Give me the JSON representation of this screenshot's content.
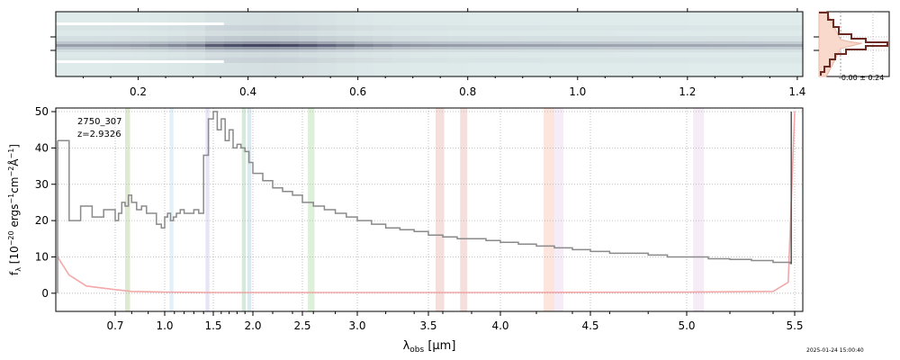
{
  "chart_data": [
    {
      "type": "heatmap",
      "name": "2D spectrum",
      "x_ticks": [
        "0.2",
        "0.4",
        "0.6",
        "0.8",
        "1.0",
        "1.2",
        "1.4"
      ],
      "x_tick_values": [
        0.2,
        0.4,
        0.6,
        0.8,
        1.0,
        1.2,
        1.4
      ],
      "xlim": [
        0.05,
        1.41
      ],
      "colormap": "bone_r (white to dark navy)"
    },
    {
      "type": "histogram",
      "name": "Pixel distribution",
      "annotation": "-0.00 ± 0.24",
      "colors": {
        "fill": "#f9d9cc",
        "edge": "#6b2a22"
      }
    },
    {
      "type": "line",
      "name": "1D spectrum",
      "object_id": "2750_307",
      "redshift": "z=2.9326",
      "xlabel": "λobs [μm]",
      "ylabel": "fλ [10⁻²⁰ ergs⁻¹cm⁻²Å⁻¹]",
      "x_ticks": [
        "0.7",
        "1.0",
        "1.5",
        "2.0",
        "2.5",
        "3.0",
        "3.5",
        "4.0",
        "4.5",
        "5.0",
        "5.5"
      ],
      "x_tick_values": [
        0.7,
        1.0,
        1.5,
        2.0,
        2.5,
        3.0,
        3.5,
        4.0,
        4.5,
        5.0,
        5.5
      ],
      "x_scale": "nonlinear (pixel-based)",
      "y_ticks": [
        "0",
        "10",
        "20",
        "30",
        "40",
        "50"
      ],
      "ylim": [
        -5,
        51
      ],
      "grid": true,
      "series": [
        {
          "role": "flux",
          "color": "#8a8a8a",
          "x": [
            0.6,
            0.62,
            0.64,
            0.66,
            0.68,
            0.7,
            0.72,
            0.74,
            0.76,
            0.78,
            0.8,
            0.83,
            0.86,
            0.89,
            0.92,
            0.95,
            0.98,
            1.0,
            1.03,
            1.06,
            1.09,
            1.12,
            1.16,
            1.2,
            1.25,
            1.3,
            1.35,
            1.4,
            1.45,
            1.5,
            1.55,
            1.6,
            1.65,
            1.7,
            1.75,
            1.8,
            1.85,
            1.9,
            1.95,
            2.0,
            2.1,
            2.2,
            2.3,
            2.4,
            2.5,
            2.6,
            2.7,
            2.8,
            2.9,
            3.0,
            3.1,
            3.2,
            3.3,
            3.4,
            3.5,
            3.6,
            3.7,
            3.8,
            3.9,
            4.0,
            4.1,
            4.2,
            4.3,
            4.4,
            4.5,
            4.6,
            4.7,
            4.8,
            4.9,
            5.0,
            5.1,
            5.2,
            5.3,
            5.4,
            5.48
          ],
          "values": [
            42,
            20,
            24,
            21,
            23,
            20,
            22,
            25,
            24,
            27,
            25,
            23,
            24,
            22,
            22,
            19,
            18,
            21,
            22,
            20,
            21,
            22,
            23,
            22,
            22,
            23,
            22,
            38,
            48,
            50,
            45,
            48,
            42,
            45,
            40,
            41,
            40,
            39,
            36,
            33,
            31,
            29,
            28,
            27,
            25,
            24,
            23,
            22,
            21,
            20,
            19,
            18,
            17.5,
            17,
            16,
            15.5,
            15,
            15,
            14.5,
            14,
            13.5,
            13,
            12.5,
            12,
            11.5,
            11,
            11,
            10.5,
            10,
            10,
            9.5,
            9.3,
            9,
            8.5,
            8
          ],
          "end_spike": 50
        },
        {
          "role": "uncertainty",
          "color": "#f2a8a8",
          "x": [
            0.6,
            0.62,
            0.65,
            0.7,
            0.8,
            1.0,
            1.5,
            2.0,
            3.0,
            4.0,
            5.0,
            5.4,
            5.47,
            5.5
          ],
          "values": [
            10,
            5,
            2,
            1,
            0.5,
            0.3,
            0.2,
            0.2,
            0.2,
            0.2,
            0.3,
            0.5,
            3,
            50
          ]
        }
      ],
      "bands": [
        {
          "x0": 0.76,
          "x1": 0.79,
          "color": "#c8ddb0"
        },
        {
          "x0": 1.05,
          "x1": 1.09,
          "color": "#cfe6f5"
        },
        {
          "x0": 1.42,
          "x1": 1.46,
          "color": "#d9d2ee"
        },
        {
          "x0": 1.86,
          "x1": 1.91,
          "color": "#b9dcc0"
        },
        {
          "x0": 1.93,
          "x1": 1.98,
          "color": "#c3dbe8"
        },
        {
          "x0": 2.55,
          "x1": 2.61,
          "color": "#c8e6c0"
        },
        {
          "x0": 3.55,
          "x1": 3.61,
          "color": "#efc9c6"
        },
        {
          "x0": 3.72,
          "x1": 3.77,
          "color": "#efc9c6"
        },
        {
          "x0": 4.24,
          "x1": 4.3,
          "color": "#f8d4c4"
        },
        {
          "x0": 4.3,
          "x1": 4.35,
          "color": "#efdff2"
        },
        {
          "x0": 5.03,
          "x1": 5.08,
          "color": "#efdff2"
        }
      ]
    }
  ],
  "timestamp": "2025-01-24 15:00:40"
}
